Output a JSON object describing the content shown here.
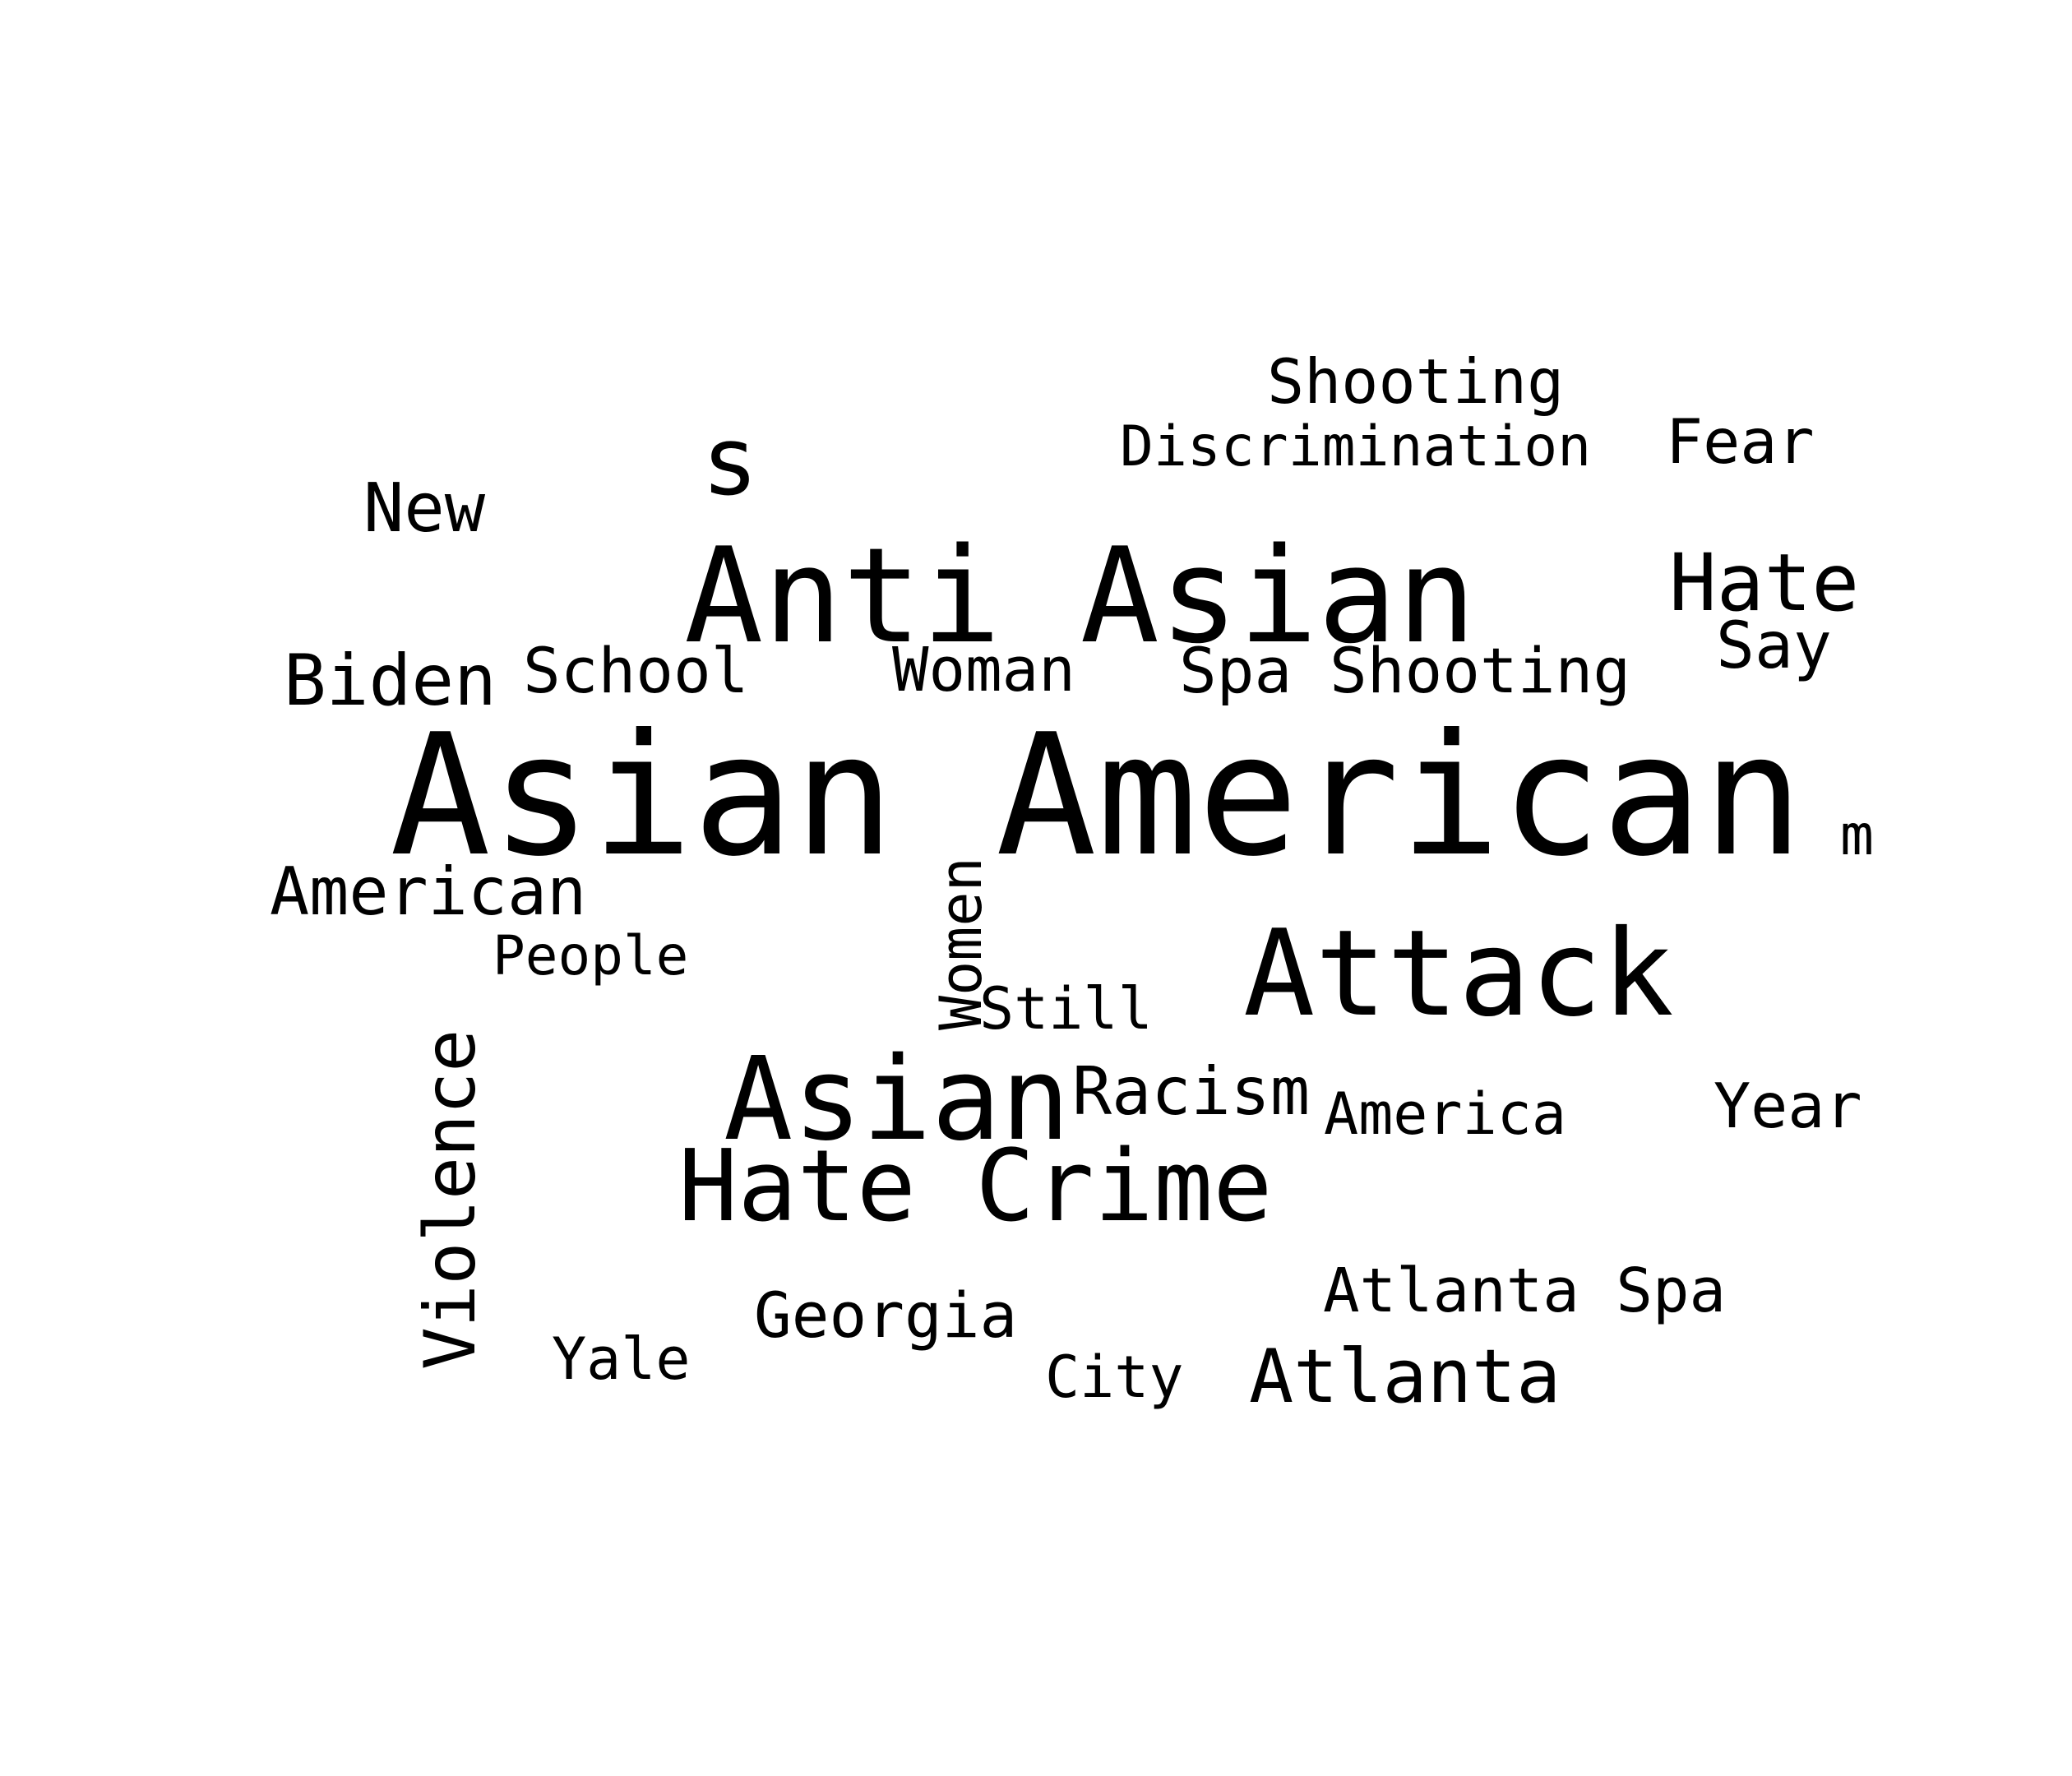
{
  "colors": {
    "background": "#ffffff",
    "text": "#000000"
  },
  "words": {
    "shooting_top": "Shooting",
    "discrimination": "Discrimination",
    "fear": "Fear",
    "s": "s",
    "new": "New",
    "anti_asian": "Anti Asian",
    "hate": "Hate",
    "say": "Say",
    "biden": "Biden",
    "school": "School",
    "woman": "Woman",
    "spa_shooting": "Spa Shooting",
    "asian_american": "Asian American",
    "m": "m",
    "american": "American",
    "women": "Women",
    "people": "People",
    "attack": "Attack",
    "still": "Still",
    "violence": "Violence",
    "asian": "Asian",
    "racism": "Racism",
    "america": "America",
    "year": "Year",
    "hate_crime": "Hate Crime",
    "atlanta_spa": "Atlanta Spa",
    "georgia": "Georgia",
    "yale": "Yale",
    "city": "City",
    "atlanta": "Atlanta"
  }
}
